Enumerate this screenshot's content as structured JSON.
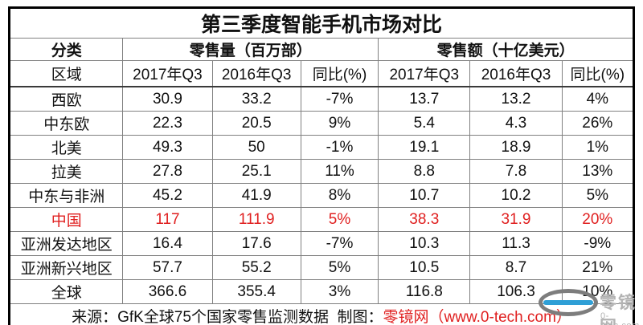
{
  "chart_data": {
    "type": "table",
    "title": "第三季度智能手机市场对比",
    "column_groups": [
      {
        "label": "分类",
        "span": 1
      },
      {
        "label": "零售量（百万部）",
        "span": 3
      },
      {
        "label": "零售额（十亿美元）",
        "span": 3
      }
    ],
    "columns": [
      "区域",
      "2017年Q3",
      "2016年Q3",
      "同比(%)",
      "2017年Q3",
      "2016年Q3",
      "同比(%)"
    ],
    "rows": [
      {
        "region": "西欧",
        "values": [
          "30.9",
          "33.2",
          "-7%",
          "13.7",
          "13.2",
          "4%"
        ],
        "highlight": false
      },
      {
        "region": "中东欧",
        "values": [
          "22.3",
          "20.5",
          "9%",
          "5.4",
          "4.3",
          "26%"
        ],
        "highlight": false
      },
      {
        "region": "北美",
        "values": [
          "49.3",
          "50",
          "-1%",
          "19.1",
          "18.9",
          "1%"
        ],
        "highlight": false
      },
      {
        "region": "拉美",
        "values": [
          "27.8",
          "25.1",
          "11%",
          "8.8",
          "7.8",
          "13%"
        ],
        "highlight": false
      },
      {
        "region": "中东与非洲",
        "values": [
          "45.2",
          "41.9",
          "8%",
          "10.7",
          "10.2",
          "5%"
        ],
        "highlight": false
      },
      {
        "region": "中国",
        "values": [
          "117",
          "111.9",
          "5%",
          "38.3",
          "31.9",
          "20%"
        ],
        "highlight": true
      },
      {
        "region": "亚洲发达地区",
        "values": [
          "16.4",
          "17.6",
          "-7%",
          "10.3",
          "11.3",
          "-9%"
        ],
        "highlight": false
      },
      {
        "region": "亚洲新兴地区",
        "values": [
          "57.7",
          "55.2",
          "5%",
          "10.5",
          "8.7",
          "21%"
        ],
        "highlight": false
      },
      {
        "region": "全球",
        "values": [
          "366.6",
          "355.4",
          "3%",
          "116.8",
          "106.3",
          "10%"
        ],
        "highlight": false
      }
    ]
  },
  "footer": {
    "source": "来源：GfK全球75个国家零售监测数据",
    "credit_label": "制图：",
    "credit_link": "零镜网（www.0-tech.com）"
  },
  "watermark": {
    "name": "零镜网",
    "domain": "0-tech.com"
  },
  "colors": {
    "highlight_red": "#e02020",
    "grid_line": "#808080",
    "outer_border": "#000000",
    "watermark_blue": "#2f9fd6",
    "watermark_gray": "#b3b3b3"
  }
}
